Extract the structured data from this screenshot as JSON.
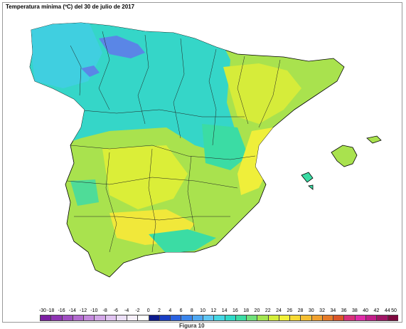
{
  "map": {
    "title": "Temperatura mínima (ºC) del 30 de julio de 2017",
    "caption": "Figura 10"
  },
  "legend": {
    "ticks": [
      "-30",
      "-18",
      "-16",
      "-14",
      "-12",
      "-10",
      "-8",
      "-6",
      "-4",
      "-2",
      "0",
      "2",
      "4",
      "6",
      "8",
      "10",
      "12",
      "14",
      "16",
      "18",
      "20",
      "22",
      "24",
      "26",
      "28",
      "30",
      "32",
      "34",
      "36",
      "38",
      "40",
      "42",
      "44",
      "50"
    ],
    "colors": [
      "#7b1fa2",
      "#8e35b3",
      "#a04fc2",
      "#b36bd0",
      "#c489dd",
      "#d3a7e8",
      "#e0c3f1",
      "#ece0f8",
      "#f6f0fb",
      "#ffffff",
      "#0d1b8c",
      "#1a3fc4",
      "#2b62e0",
      "#3b86ec",
      "#4fa8f2",
      "#5fc6f4",
      "#44d6e4",
      "#2fd9c8",
      "#3bdca4",
      "#6fe07a",
      "#a3e64f",
      "#d4ee3a",
      "#f1f03a",
      "#f6d935",
      "#f5bf33",
      "#f0a02e",
      "#e67a28",
      "#db5528",
      "#d8307a",
      "#e02ca8",
      "#c21e8a",
      "#a01565",
      "#7e0a3f"
    ]
  }
}
